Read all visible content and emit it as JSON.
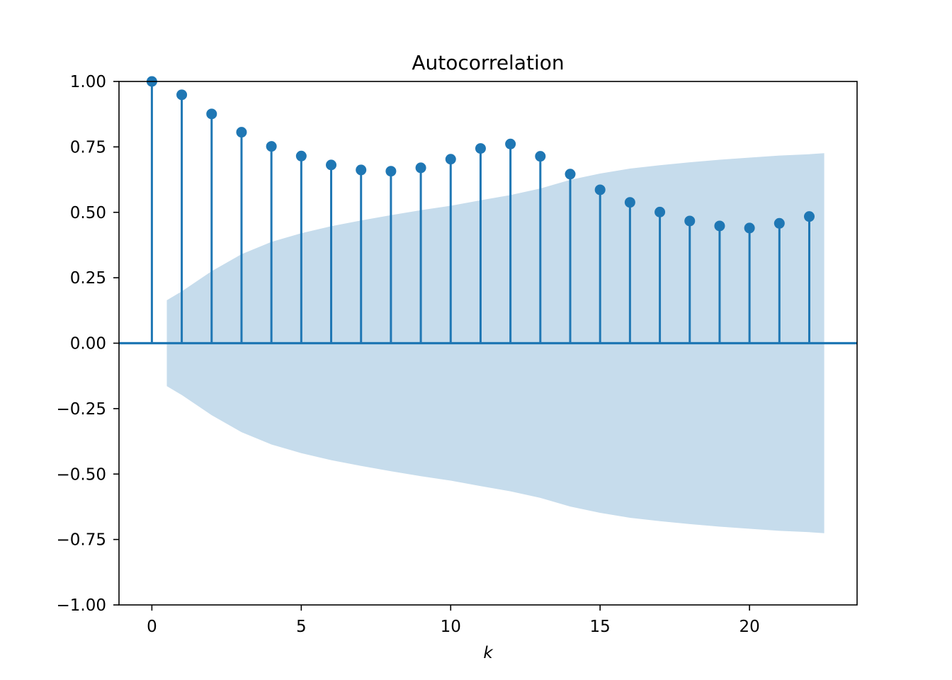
{
  "chart_data": {
    "type": "stem",
    "title": "Autocorrelation",
    "xlabel": "k",
    "ylabel": "",
    "xlim": [
      -1.1,
      23.6
    ],
    "ylim": [
      -1.0,
      1.0
    ],
    "grid": false,
    "legend": "none",
    "xticks": [
      0,
      5,
      10,
      15,
      20
    ],
    "xtick_labels": [
      "0",
      "5",
      "10",
      "15",
      "20"
    ],
    "yticks": [
      1.0,
      0.75,
      0.5,
      0.25,
      0.0,
      -0.25,
      -0.5,
      -0.75,
      -1.0
    ],
    "ytick_labels": [
      "1.00",
      "0.75",
      "0.50",
      "0.25",
      "0.00",
      "−0.25",
      "−0.50",
      "−0.75",
      "−1.00"
    ],
    "x": [
      0,
      1,
      2,
      3,
      4,
      5,
      6,
      7,
      8,
      9,
      10,
      11,
      12,
      13,
      14,
      15,
      16,
      17,
      18,
      19,
      20,
      21,
      22
    ],
    "values": [
      1.0,
      0.949,
      0.876,
      0.806,
      0.752,
      0.715,
      0.681,
      0.662,
      0.657,
      0.67,
      0.703,
      0.744,
      0.761,
      0.714,
      0.646,
      0.586,
      0.538,
      0.501,
      0.467,
      0.448,
      0.44,
      0.458,
      0.484
    ],
    "confidence_band": {
      "x": [
        0.5,
        1,
        2,
        3,
        4,
        5,
        6,
        7,
        8,
        9,
        10,
        11,
        12,
        13,
        14,
        15,
        16,
        17,
        18,
        19,
        20,
        21,
        22,
        22.5
      ],
      "upper": [
        0.164,
        0.198,
        0.275,
        0.34,
        0.387,
        0.42,
        0.447,
        0.469,
        0.489,
        0.508,
        0.525,
        0.546,
        0.566,
        0.591,
        0.624,
        0.648,
        0.667,
        0.68,
        0.691,
        0.701,
        0.709,
        0.717,
        0.722,
        0.726
      ],
      "lower": [
        -0.164,
        -0.198,
        -0.275,
        -0.34,
        -0.387,
        -0.42,
        -0.447,
        -0.469,
        -0.489,
        -0.508,
        -0.525,
        -0.546,
        -0.566,
        -0.591,
        -0.624,
        -0.648,
        -0.667,
        -0.68,
        -0.691,
        -0.701,
        -0.709,
        -0.717,
        -0.722,
        -0.726
      ]
    },
    "colors": {
      "stem": "#1f77b4",
      "band": "#c6dcec",
      "axis": "#000000"
    }
  }
}
